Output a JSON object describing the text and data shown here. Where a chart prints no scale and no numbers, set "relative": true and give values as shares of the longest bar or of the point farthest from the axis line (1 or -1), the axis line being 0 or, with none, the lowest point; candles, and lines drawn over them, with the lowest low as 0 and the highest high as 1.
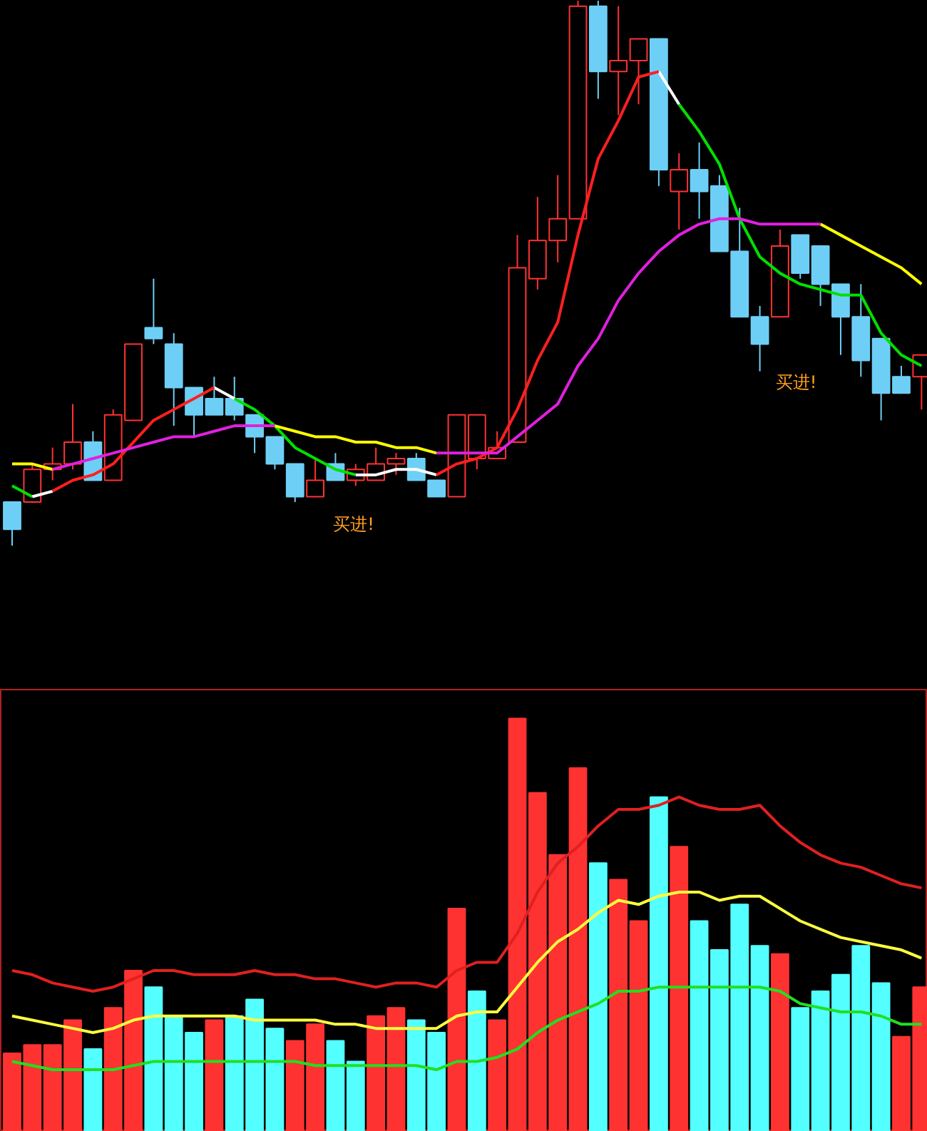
{
  "chart_data": [
    {
      "type": "candlestick",
      "relative": true,
      "categories": [
        null,
        null,
        null,
        null,
        null,
        null,
        null,
        null,
        null,
        null,
        null,
        null,
        null,
        null,
        null,
        null,
        null,
        null,
        null,
        null,
        null,
        null,
        null,
        null,
        null,
        null,
        null,
        null,
        null,
        null,
        null,
        null,
        null,
        null,
        null,
        null,
        null,
        null,
        null,
        null,
        null,
        null,
        null,
        null,
        null,
        null
      ],
      "ohlc": [
        [
          0.08,
          0.08,
          0,
          0.03
        ],
        [
          0.08,
          0.15,
          0.08,
          0.14
        ],
        [
          0.14,
          0.18,
          0.12,
          0.15
        ],
        [
          0.15,
          0.26,
          0.14,
          0.19
        ],
        [
          0.19,
          0.21,
          0.12,
          0.12
        ],
        [
          0.12,
          0.25,
          0.12,
          0.24
        ],
        [
          0.23,
          0.37,
          0.23,
          0.37
        ],
        [
          0.4,
          0.49,
          0.37,
          0.38
        ],
        [
          0.37,
          0.39,
          0.22,
          0.29
        ],
        [
          0.29,
          0.29,
          0.2,
          0.24
        ],
        [
          0.27,
          0.31,
          0.24,
          0.24
        ],
        [
          0.27,
          0.31,
          0.23,
          0.24
        ],
        [
          0.24,
          0.24,
          0.17,
          0.2
        ],
        [
          0.2,
          0.2,
          0.14,
          0.15
        ],
        [
          0.15,
          0.15,
          0.08,
          0.09
        ],
        [
          0.09,
          0.16,
          0.09,
          0.12
        ],
        [
          0.15,
          0.17,
          0.12,
          0.12
        ],
        [
          0.12,
          0.15,
          0.11,
          0.14
        ],
        [
          0.12,
          0.18,
          0.12,
          0.15
        ],
        [
          0.15,
          0.17,
          0.13,
          0.16
        ],
        [
          0.16,
          0.17,
          0.12,
          0.12
        ],
        [
          0.12,
          0.12,
          0.09,
          0.09
        ],
        [
          0.09,
          0.24,
          0.09,
          0.24
        ],
        [
          0.16,
          0.24,
          0.14,
          0.24
        ],
        [
          0.16,
          0.21,
          0.16,
          0.18
        ],
        [
          0.19,
          0.57,
          0.19,
          0.51
        ],
        [
          0.49,
          0.64,
          0.47,
          0.56
        ],
        [
          0.56,
          0.68,
          0.52,
          0.6
        ],
        [
          0.6,
          1,
          0.6,
          0.99
        ],
        [
          0.99,
          1,
          0.82,
          0.87
        ],
        [
          0.87,
          0.99,
          0.79,
          0.89
        ],
        [
          0.89,
          0.93,
          0.81,
          0.93
        ],
        [
          0.93,
          0.93,
          0.66,
          0.69
        ],
        [
          0.65,
          0.72,
          0.58,
          0.69
        ],
        [
          0.69,
          0.74,
          0.6,
          0.65
        ],
        [
          0.66,
          0.68,
          0.54,
          0.54
        ],
        [
          0.54,
          0.62,
          0.42,
          0.42
        ],
        [
          0.42,
          0.44,
          0.32,
          0.37
        ],
        [
          0.42,
          0.58,
          0.42,
          0.55
        ],
        [
          0.57,
          0.57,
          0.49,
          0.5
        ],
        [
          0.55,
          0.55,
          0.44,
          0.48
        ],
        [
          0.48,
          0.48,
          0.35,
          0.42
        ],
        [
          0.42,
          0.48,
          0.31,
          0.34
        ],
        [
          0.38,
          0.38,
          0.23,
          0.28
        ],
        [
          0.31,
          0.33,
          0.28,
          0.28
        ],
        [
          0.31,
          0.35,
          0.25,
          0.35
        ]
      ],
      "colors": [
        "#6ecff6",
        "#ff3232",
        "#ff3232",
        "#ff3232",
        "#6ecff6",
        "#ff3232",
        "#ff3232",
        "#6ecff6",
        "#6ecff6",
        "#6ecff6",
        "#6ecff6",
        "#6ecff6",
        "#6ecff6",
        "#6ecff6",
        "#6ecff6",
        "#ff3232",
        "#6ecff6",
        "#ff3232",
        "#ff3232",
        "#ff3232",
        "#6ecff6",
        "#6ecff6",
        "#ff3232",
        "#ff3232",
        "#ff3232",
        "#ff3232",
        "#ff3232",
        "#ff3232",
        "#ff3232",
        "#6ecff6",
        "#ff3232",
        "#ff3232",
        "#6ecff6",
        "#ff3232",
        "#6ecff6",
        "#6ecff6",
        "#6ecff6",
        "#6ecff6",
        "#ff3232",
        "#6ecff6",
        "#6ecff6",
        "#6ecff6",
        "#6ecff6",
        "#6ecff6",
        "#6ecff6",
        "#ff3232"
      ],
      "series": [
        {
          "type": "line",
          "color": "#00e000",
          "values": [
            0.11,
            0.09,
            null,
            null,
            null,
            null,
            null,
            null,
            null,
            null,
            null,
            0.27,
            0.25,
            0.22,
            0.18,
            0.16,
            0.14,
            0.13,
            null,
            null,
            null,
            null,
            null,
            null,
            null,
            null,
            null,
            null,
            null,
            null,
            null,
            null,
            null,
            0.81,
            0.76,
            0.7,
            0.6,
            0.53,
            0.5,
            0.48,
            0.47,
            0.46,
            0.46,
            0.39,
            0.35,
            0.33
          ]
        },
        {
          "type": "line",
          "color": "#ffffff",
          "values": [
            null,
            0.09,
            0.1,
            null,
            null,
            null,
            null,
            null,
            null,
            null,
            0.29,
            0.27,
            null,
            null,
            null,
            null,
            null,
            0.13,
            0.13,
            0.14,
            0.14,
            0.13,
            null,
            null,
            null,
            null,
            null,
            null,
            null,
            null,
            null,
            null,
            0.87,
            0.81,
            null,
            null,
            null,
            null,
            null,
            null,
            null,
            null,
            null,
            null,
            null,
            null
          ]
        },
        {
          "type": "line",
          "color": "#ff2020",
          "values": [
            null,
            null,
            0.1,
            0.12,
            0.13,
            0.15,
            0.19,
            0.23,
            0.25,
            0.27,
            0.29,
            null,
            null,
            null,
            null,
            null,
            null,
            null,
            null,
            null,
            null,
            0.13,
            0.15,
            0.16,
            0.18,
            0.25,
            0.34,
            0.41,
            0.57,
            0.71,
            0.78,
            0.86,
            0.87,
            null,
            null,
            null,
            null,
            null,
            null,
            null,
            null,
            null,
            null,
            null,
            null,
            null
          ]
        },
        {
          "type": "line",
          "color": "#ffff00",
          "values": [
            0.15,
            0.15,
            0.14,
            null,
            null,
            null,
            null,
            null,
            null,
            null,
            null,
            null,
            null,
            0.22,
            0.21,
            0.2,
            0.2,
            0.19,
            0.19,
            0.18,
            0.18,
            0.17,
            null,
            null,
            null,
            null,
            null,
            null,
            null,
            null,
            null,
            null,
            null,
            null,
            null,
            null,
            null,
            null,
            null,
            null,
            0.59,
            0.57,
            0.55,
            0.53,
            0.51,
            0.48
          ]
        },
        {
          "type": "line",
          "color": "#e020e0",
          "values": [
            null,
            null,
            0.14,
            0.15,
            0.16,
            0.17,
            0.18,
            0.19,
            0.2,
            0.2,
            0.21,
            0.22,
            0.22,
            0.22,
            null,
            null,
            null,
            null,
            null,
            null,
            null,
            0.17,
            0.17,
            0.17,
            0.17,
            0.2,
            0.23,
            0.26,
            0.33,
            0.38,
            0.45,
            0.5,
            0.54,
            0.57,
            0.59,
            0.6,
            0.6,
            0.59,
            0.59,
            0.59,
            0.59,
            null,
            null,
            null,
            null,
            null
          ]
        }
      ],
      "annotations": [
        "买进!",
        "买进!"
      ]
    },
    {
      "type": "bar",
      "relative": true,
      "categories": [
        null,
        null,
        null,
        null,
        null,
        null,
        null,
        null,
        null,
        null,
        null,
        null,
        null,
        null,
        null,
        null,
        null,
        null,
        null,
        null,
        null,
        null,
        null,
        null,
        null,
        null,
        null,
        null,
        null,
        null,
        null,
        null,
        null,
        null,
        null,
        null,
        null,
        null,
        null,
        null,
        null,
        null,
        null,
        null,
        null,
        null
      ],
      "series": [
        {
          "type": "bar",
          "colors": [
            "#ff3232",
            "#ff3232",
            "#ff3232",
            "#ff3232",
            "#54ffff",
            "#ff3232",
            "#ff3232",
            "#54ffff",
            "#54ffff",
            "#54ffff",
            "#ff3232",
            "#54ffff",
            "#54ffff",
            "#54ffff",
            "#ff3232",
            "#ff3232",
            "#54ffff",
            "#54ffff",
            "#ff3232",
            "#ff3232",
            "#54ffff",
            "#54ffff",
            "#ff3232",
            "#54ffff",
            "#ff3232",
            "#ff3232",
            "#ff3232",
            "#ff3232",
            "#ff3232",
            "#54ffff",
            "#ff3232",
            "#ff3232",
            "#54ffff",
            "#ff3232",
            "#54ffff",
            "#54ffff",
            "#54ffff",
            "#54ffff",
            "#ff3232",
            "#54ffff",
            "#54ffff",
            "#54ffff",
            "#54ffff",
            "#54ffff",
            "#ff3232",
            "#ff3232"
          ],
          "values": [
            0.19,
            0.21,
            0.21,
            0.27,
            0.2,
            0.3,
            0.39,
            0.35,
            0.28,
            0.24,
            0.27,
            0.28,
            0.32,
            0.25,
            0.22,
            0.26,
            0.22,
            0.17,
            0.28,
            0.3,
            0.27,
            0.24,
            0.54,
            0.34,
            0.27,
            1.0,
            0.82,
            0.67,
            0.88,
            0.65,
            0.61,
            0.51,
            0.81,
            0.69,
            0.51,
            0.44,
            0.55,
            0.45,
            0.43,
            0.3,
            0.34,
            0.38,
            0.45,
            0.36,
            0.23,
            0.35
          ]
        },
        {
          "type": "line",
          "color": "#e02020",
          "values": [
            0.39,
            0.38,
            0.36,
            0.35,
            0.34,
            0.35,
            0.37,
            0.39,
            0.39,
            0.38,
            0.38,
            0.38,
            0.39,
            0.38,
            0.38,
            0.37,
            0.37,
            0.36,
            0.35,
            0.36,
            0.36,
            0.35,
            0.39,
            0.41,
            0.41,
            0.48,
            0.58,
            0.65,
            0.69,
            0.74,
            0.78,
            0.78,
            0.79,
            0.81,
            0.79,
            0.78,
            0.78,
            0.79,
            0.74,
            0.7,
            0.67,
            0.65,
            0.64,
            0.62,
            0.6,
            0.59
          ]
        },
        {
          "type": "line",
          "color": "#ffff40",
          "values": [
            0.28,
            0.27,
            0.26,
            0.25,
            0.24,
            0.25,
            0.27,
            0.28,
            0.28,
            0.28,
            0.28,
            0.28,
            0.27,
            0.27,
            0.27,
            0.27,
            0.26,
            0.26,
            0.25,
            0.25,
            0.25,
            0.25,
            0.28,
            0.29,
            0.29,
            0.35,
            0.41,
            0.46,
            0.49,
            0.53,
            0.56,
            0.55,
            0.57,
            0.58,
            0.58,
            0.56,
            0.57,
            0.57,
            0.54,
            0.51,
            0.49,
            0.47,
            0.46,
            0.45,
            0.44,
            0.42
          ]
        },
        {
          "type": "line",
          "color": "#20e020",
          "values": [
            0.17,
            0.16,
            0.15,
            0.15,
            0.15,
            0.15,
            0.16,
            0.17,
            0.17,
            0.17,
            0.17,
            0.17,
            0.17,
            0.17,
            0.17,
            0.16,
            0.16,
            0.16,
            0.16,
            0.16,
            0.16,
            0.15,
            0.17,
            0.17,
            0.18,
            0.2,
            0.24,
            0.27,
            0.29,
            0.31,
            0.34,
            0.34,
            0.35,
            0.35,
            0.35,
            0.35,
            0.35,
            0.35,
            0.34,
            0.31,
            0.3,
            0.29,
            0.29,
            0.28,
            0.26,
            0.26
          ]
        }
      ]
    }
  ]
}
